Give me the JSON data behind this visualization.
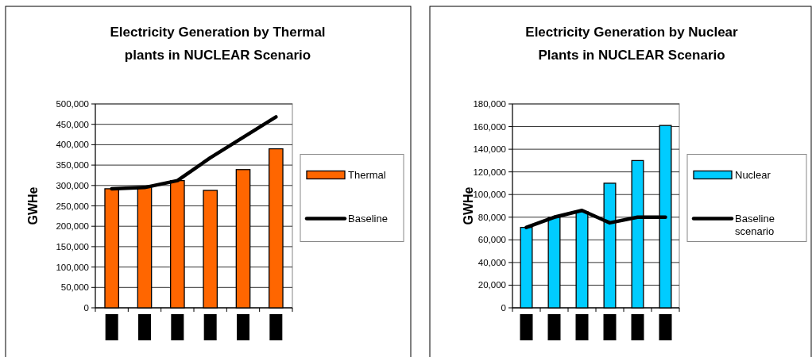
{
  "chart_data": [
    {
      "type": "bar",
      "title": "Electricity Generation by Thermal plants in NUCLEAR Scenario",
      "ylabel": "GWHe",
      "categories": [
        null,
        null,
        null,
        null,
        null,
        null
      ],
      "series": [
        {
          "name": "Thermal",
          "color": "#ff6600",
          "values": [
            292000,
            295000,
            312000,
            288000,
            339000,
            390000
          ]
        },
        {
          "name": "Baseline",
          "type": "line",
          "color": "#000000",
          "values": [
            292000,
            295000,
            312000,
            368000,
            418000,
            468000
          ]
        }
      ],
      "ylim": [
        0,
        500000
      ],
      "yticks": [
        0,
        {
          "value": 50000,
          "label": "50,000"
        },
        {
          "value": 100000,
          "label": "100,000"
        },
        {
          "value": 150000,
          "label": "150,000"
        },
        {
          "value": 200000,
          "label": "200,000"
        },
        {
          "value": 250000,
          "label": "250,000"
        },
        {
          "value": 300000,
          "label": "300,000"
        },
        {
          "value": 350000,
          "label": "350,000"
        },
        {
          "value": 400000,
          "label": "400,000"
        },
        {
          "value": 450000,
          "label": "450,000"
        },
        {
          "value": 500000,
          "label": "500,000"
        }
      ],
      "grid": "y",
      "legend": "right",
      "marker": "none",
      "line_style": "solid"
    },
    {
      "type": "bar",
      "title": "Electricity Generation by Nuclear Plants in NUCLEAR Scenario",
      "ylabel": "GWHe",
      "categories": [
        null,
        null,
        null,
        null,
        null,
        null
      ],
      "series": [
        {
          "name": "Nuclear",
          "color": "#00ccff",
          "values": [
            71000,
            80000,
            85000,
            110000,
            130000,
            161000
          ]
        },
        {
          "name": "Baseline scenario",
          "type": "line",
          "color": "#000000",
          "values": [
            71000,
            80000,
            86000,
            75000,
            80000,
            80000
          ]
        }
      ],
      "ylim": [
        0,
        180000
      ],
      "yticks": [
        0,
        {
          "value": 20000,
          "label": "20,000"
        },
        {
          "value": 40000,
          "label": "40,000"
        },
        {
          "value": 60000,
          "label": "60,000"
        },
        {
          "value": 80000,
          "label": "80,000"
        },
        {
          "value": 100000,
          "label": "100,000"
        },
        {
          "value": 120000,
          "label": "120,000"
        },
        {
          "value": 140000,
          "label": "140,000"
        },
        {
          "value": 160000,
          "label": "160,000"
        },
        {
          "value": 180000,
          "label": "180,000"
        }
      ],
      "grid": "y",
      "legend": "right",
      "marker": "none",
      "line_style": "solid"
    }
  ]
}
